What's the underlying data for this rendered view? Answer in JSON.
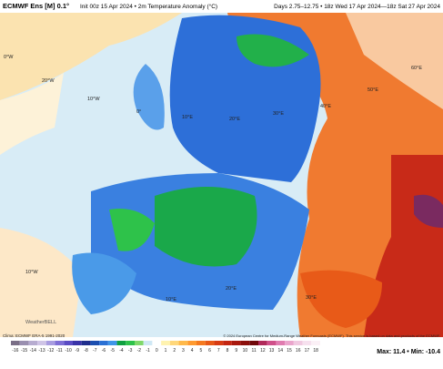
{
  "header": {
    "model": "ECMWF Ens [M] 0.1°",
    "init": "Init 00z 15 Apr 2024 • 2m Temperature Anomaly (°C)",
    "period": "Days 2.75–12.75 • 18z Wed 17 Apr 2024—18z Sat 27 Apr 2024"
  },
  "map": {
    "labels": [
      "0°W",
      "20°W",
      "10°W",
      "0°",
      "10°E",
      "20°E",
      "30°E",
      "40°E",
      "50°E",
      "60°E",
      "10°W",
      "10°E",
      "20°E",
      "30°E"
    ],
    "logo": "WeatherBELL"
  },
  "footer": {
    "clima": "Clima: ECMWF ERA-5 1991-2020",
    "credit": "© 2024 European Centre for Medium-Range Weather Forecasts (ECMWF). This service is based on data and products of the ECMWF.",
    "extremes": "Max: 11.4 • Min: -10.4"
  },
  "colorbar": {
    "labels": [
      -16,
      -15,
      -14,
      -13,
      -12,
      -11,
      -10,
      -9,
      -8,
      -7,
      -6,
      -5,
      -4,
      -3,
      -2,
      -1,
      0,
      1,
      2,
      3,
      4,
      5,
      6,
      7,
      8,
      9,
      10,
      11,
      12,
      13,
      14,
      15,
      16,
      17,
      18
    ],
    "colors": [
      "#7a6e86",
      "#9a8fb0",
      "#b7acd0",
      "#cfc4e6",
      "#a89ce0",
      "#7f6fd6",
      "#5b4cc4",
      "#3a34a8",
      "#1f2e8c",
      "#1c4fb0",
      "#2a70d4",
      "#3f95e8",
      "#10a040",
      "#2ec24a",
      "#7fd86a",
      "#cfe8f5",
      "#ffffff",
      "#fff3b0",
      "#ffd77a",
      "#ffb94a",
      "#ff9a30",
      "#f57a20",
      "#e85a18",
      "#d83c14",
      "#c42612",
      "#a8180e",
      "#8c100c",
      "#70080a",
      "#b02a5a",
      "#d0508a",
      "#e07cb0",
      "#eaa4cc",
      "#f0c8e0",
      "#f6e0ee",
      "#fbf0f6"
    ]
  }
}
